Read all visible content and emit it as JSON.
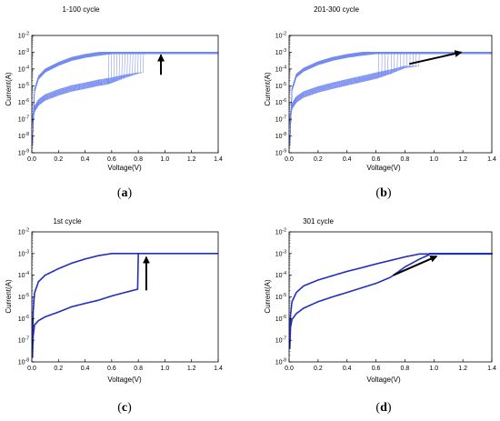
{
  "figure": {
    "panels": [
      {
        "caption_open": "(",
        "caption_letter": "a",
        "caption_close": ")",
        "accent": "#6f86ef"
      },
      {
        "caption_open": "(",
        "caption_letter": "b",
        "caption_close": ")",
        "accent": "#6f86ef"
      },
      {
        "caption_open": "(",
        "caption_letter": "c",
        "caption_close": ")",
        "accent": "#1f2fc2"
      },
      {
        "caption_open": "(",
        "caption_letter": "d",
        "caption_close": ")",
        "accent": "#1f2fc2"
      }
    ]
  },
  "chart_data": [
    {
      "type": "line",
      "title": "1-100 cycle",
      "xlabel": "Voltage(V)",
      "ylabel": "Current(A)",
      "xlim": [
        0,
        1.4
      ],
      "ylim": [
        1e-09,
        0.01
      ],
      "yscale": "log",
      "xticks": [
        "0.0",
        "0.2",
        "0.4",
        "0.6",
        "0.8",
        "1.0",
        "1.2",
        "1.4"
      ],
      "yticks": [
        "10-9",
        "10-8",
        "10-7",
        "10-6",
        "10-5",
        "10-4",
        "10-3",
        "10-2"
      ],
      "line_color": "#6f86ef",
      "multi_cycle": true,
      "cycles_drawn": 14,
      "compliance": 0.001,
      "set_voltage_range": [
        0.58,
        0.84
      ],
      "low_branch": {
        "x": [
          0.005,
          0.02,
          0.05,
          0.1,
          0.2,
          0.3,
          0.4,
          0.5,
          0.6,
          0.7,
          0.8
        ],
        "y": [
          1e-07,
          4e-07,
          1e-06,
          2e-06,
          4e-06,
          7e-06,
          1e-05,
          1.5e-05,
          2e-05,
          3e-05,
          4e-05
        ]
      },
      "high_branch": {
        "x": [
          0.005,
          0.02,
          0.05,
          0.1,
          0.2,
          0.3,
          0.4,
          0.5,
          0.6
        ],
        "y": [
          3e-09,
          5e-06,
          3e-05,
          8e-05,
          0.0002,
          0.0004,
          0.0006,
          0.0008,
          0.001
        ]
      },
      "arrow": {
        "from": [
          0.97,
          4.5e-05
        ],
        "to": [
          0.97,
          0.0007
        ]
      }
    },
    {
      "type": "line",
      "title": "201-300 cycle",
      "xlabel": "Voltage(V)",
      "ylabel": "Current(A)",
      "xlim": [
        0,
        1.4
      ],
      "ylim": [
        1e-09,
        0.01
      ],
      "yscale": "log",
      "xticks": [
        "0.0",
        "0.2",
        "0.4",
        "0.6",
        "0.8",
        "1.0",
        "1.2",
        "1.4"
      ],
      "yticks": [
        "10-9",
        "10-8",
        "10-7",
        "10-6",
        "10-5",
        "10-4",
        "10-3",
        "10-2"
      ],
      "line_color": "#6f86ef",
      "multi_cycle": true,
      "cycles_drawn": 14,
      "compliance": 0.001,
      "set_voltage_range": [
        0.62,
        0.9
      ],
      "low_branch": {
        "x": [
          0.005,
          0.02,
          0.05,
          0.1,
          0.2,
          0.3,
          0.4,
          0.5,
          0.6,
          0.7,
          0.8
        ],
        "y": [
          1e-07,
          6e-07,
          1.5e-06,
          3e-06,
          6e-06,
          1e-05,
          1.6e-05,
          2.5e-05,
          4e-05,
          6e-05,
          0.0001
        ]
      },
      "high_branch": {
        "x": [
          0.005,
          0.02,
          0.05,
          0.1,
          0.2,
          0.3,
          0.4,
          0.5,
          0.6
        ],
        "y": [
          3e-09,
          6e-06,
          4e-05,
          9e-05,
          0.00022,
          0.0004,
          0.0006,
          0.0008,
          0.001
        ]
      },
      "arrow": {
        "from": [
          0.83,
          0.0002
        ],
        "to": [
          1.19,
          0.001
        ]
      }
    },
    {
      "type": "line",
      "title": "1st cycle",
      "xlabel": "Voltage(V)",
      "ylabel": "Current(A)",
      "xlim": [
        0,
        1.4
      ],
      "ylim": [
        1e-08,
        0.01
      ],
      "yscale": "log",
      "xticks": [
        "0.0",
        "0.2",
        "0.4",
        "0.6",
        "0.8",
        "1.0",
        "1.2",
        "1.4"
      ],
      "yticks": [
        "10-8",
        "10-7",
        "10-6",
        "10-5",
        "10-4",
        "10-3",
        "10-2"
      ],
      "line_color": "#1f2fc2",
      "multi_cycle": false,
      "compliance": 0.001,
      "set_voltage_range": [
        0.8,
        0.8
      ],
      "low_branch": {
        "x": [
          0.005,
          0.01,
          0.02,
          0.05,
          0.1,
          0.2,
          0.3,
          0.4,
          0.5,
          0.6,
          0.7,
          0.8
        ],
        "y": [
          2e-08,
          1.5e-07,
          5e-07,
          8e-07,
          1.2e-06,
          2e-06,
          3.5e-06,
          5e-06,
          7e-06,
          1.1e-05,
          1.6e-05,
          2.3e-05
        ]
      },
      "high_branch": {
        "x": [
          0.005,
          0.01,
          0.02,
          0.05,
          0.1,
          0.2,
          0.3,
          0.4,
          0.5,
          0.6
        ],
        "y": [
          1.5e-08,
          2e-06,
          1.5e-05,
          5e-05,
          0.0001,
          0.0002,
          0.00036,
          0.00056,
          0.0008,
          0.001
        ]
      },
      "arrow": {
        "from": [
          0.86,
          2e-05
        ],
        "to": [
          0.86,
          0.0007
        ]
      }
    },
    {
      "type": "line",
      "title": "301 cycle",
      "xlabel": "Voltage(V)",
      "ylabel": "Current(A)",
      "xlim": [
        0,
        1.4
      ],
      "ylim": [
        1e-08,
        0.01
      ],
      "yscale": "log",
      "xticks": [
        "0.0",
        "0.2",
        "0.4",
        "0.6",
        "0.8",
        "1.0",
        "1.2",
        "1.4"
      ],
      "yticks": [
        "10-8",
        "10-7",
        "10-6",
        "10-5",
        "10-4",
        "10-3",
        "10-2"
      ],
      "line_color": "#1f2fc2",
      "multi_cycle": false,
      "compliance": 0.001,
      "set_voltage_range": [
        0.97,
        0.97
      ],
      "low_branch": {
        "x": [
          0.005,
          0.01,
          0.02,
          0.05,
          0.1,
          0.2,
          0.3,
          0.4,
          0.5,
          0.6,
          0.7,
          0.8,
          0.9,
          0.97
        ],
        "y": [
          5e-08,
          4e-07,
          9e-07,
          1.7e-06,
          3e-06,
          6e-06,
          1e-05,
          1.6e-05,
          2.6e-05,
          4.2e-05,
          8e-05,
          0.00024,
          0.00055,
          0.0009
        ]
      },
      "high_branch": {
        "x": [
          0.005,
          0.01,
          0.02,
          0.05,
          0.1,
          0.2,
          0.3,
          0.4,
          0.5,
          0.6,
          0.7,
          0.8,
          0.9
        ],
        "y": [
          4e-08,
          1.5e-06,
          6e-06,
          1.6e-05,
          3.2e-05,
          6e-05,
          9.5e-05,
          0.00015,
          0.00022,
          0.00033,
          0.00048,
          0.0007,
          0.00095
        ]
      },
      "arrow": {
        "from": [
          0.72,
          0.0001
        ],
        "to": [
          1.02,
          0.00075
        ]
      }
    }
  ]
}
